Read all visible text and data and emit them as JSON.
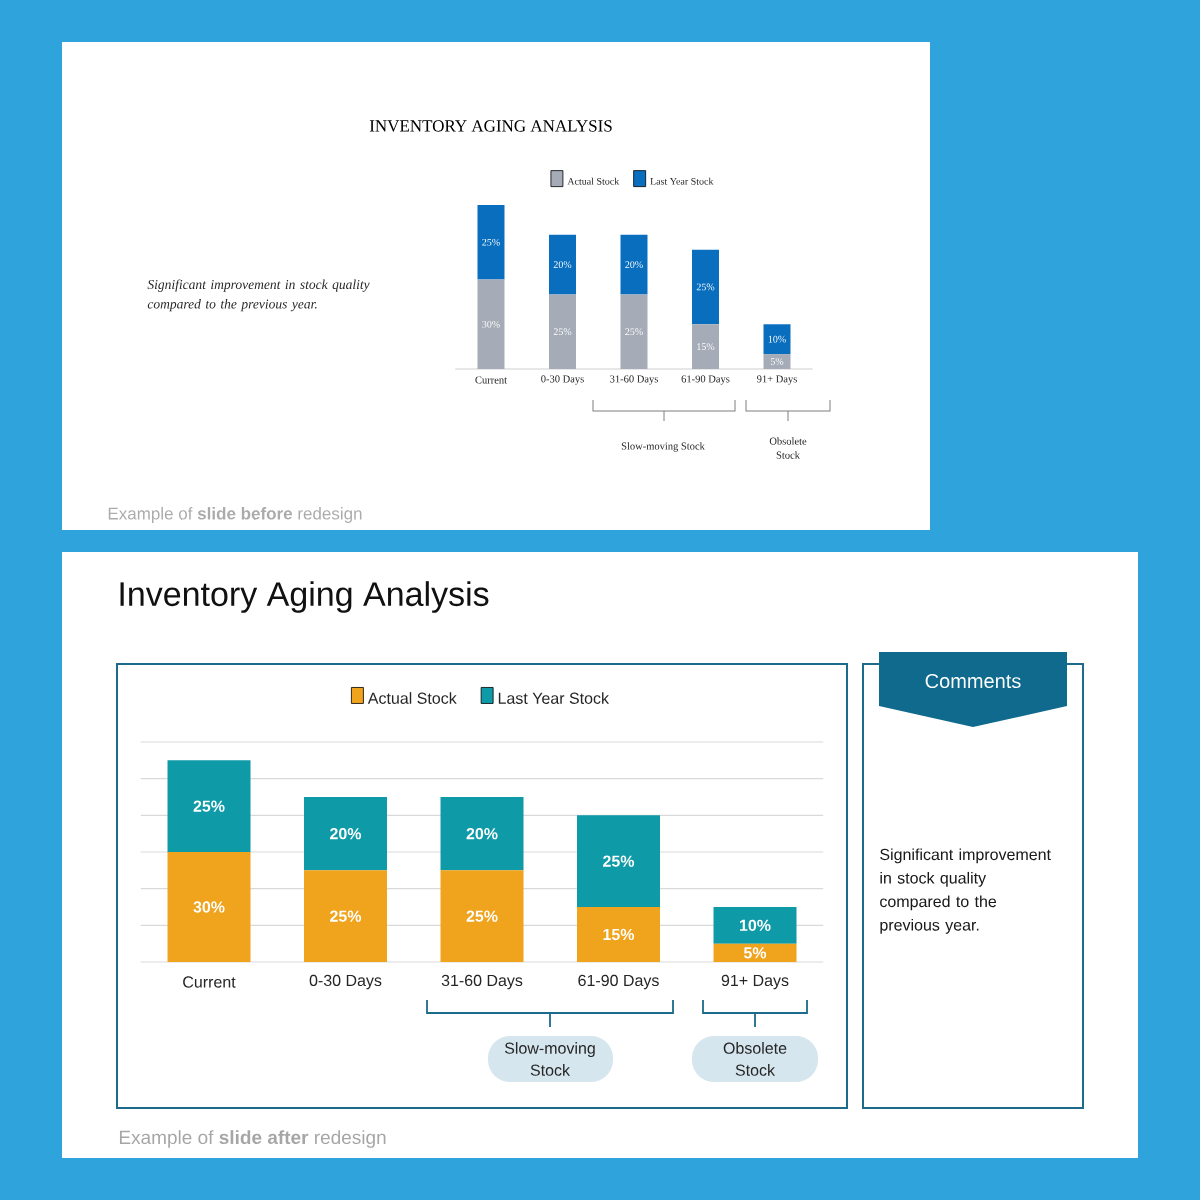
{
  "chart_data": [
    {
      "type": "bar",
      "title": "INVENTORY AGING ANALYSIS",
      "categories": [
        "Current",
        "0-30 Days",
        "31-60 Days",
        "61-90 Days",
        "91+ Days"
      ],
      "stacked": true,
      "legend": "top",
      "tick_labels": "x",
      "series": [
        {
          "name": "Actual Stock",
          "color": "#a5acb7",
          "values": [
            30,
            25,
            25,
            15,
            5
          ],
          "value_labels": [
            "30%",
            "25%",
            "25%",
            "15%",
            "5%"
          ]
        },
        {
          "name": "Last Year Stock",
          "color": "#0a6ebf",
          "values": [
            25,
            20,
            20,
            25,
            10
          ],
          "value_labels": [
            "25%",
            "20%",
            "20%",
            "25%",
            "10%"
          ]
        }
      ],
      "annotations": [
        "Significant improvement in stock quality compared to the previous year.",
        "Slow-moving Stock",
        "Obsolete Stock",
        "Example of **slide before** redesign"
      ]
    },
    {
      "type": "bar",
      "title": "Inventory Aging Analysis",
      "categories": [
        "Current",
        "0-30 Days",
        "31-60 Days",
        "61-90 Days",
        "91+ Days"
      ],
      "stacked": true,
      "legend": "top",
      "grid": "y",
      "tick_labels": "x",
      "series": [
        {
          "name": "Actual Stock",
          "color": "#f0a31c",
          "values": [
            30,
            25,
            25,
            15,
            5
          ],
          "value_labels": [
            "30%",
            "25%",
            "25%",
            "15%",
            "5%"
          ]
        },
        {
          "name": "Last Year Stock",
          "color": "#0e9aa7",
          "values": [
            25,
            20,
            20,
            25,
            10
          ],
          "value_labels": [
            "25%",
            "20%",
            "20%",
            "25%",
            "10%"
          ]
        }
      ],
      "annotations": [
        "Slow-moving Stock",
        "Obsolete Stock",
        "Example of **slide after** redesign"
      ]
    },
    {
      "type": "other",
      "title": "Comments",
      "annotations": [
        "Significant improvement in stock quality compared to the previous year."
      ]
    }
  ]
}
